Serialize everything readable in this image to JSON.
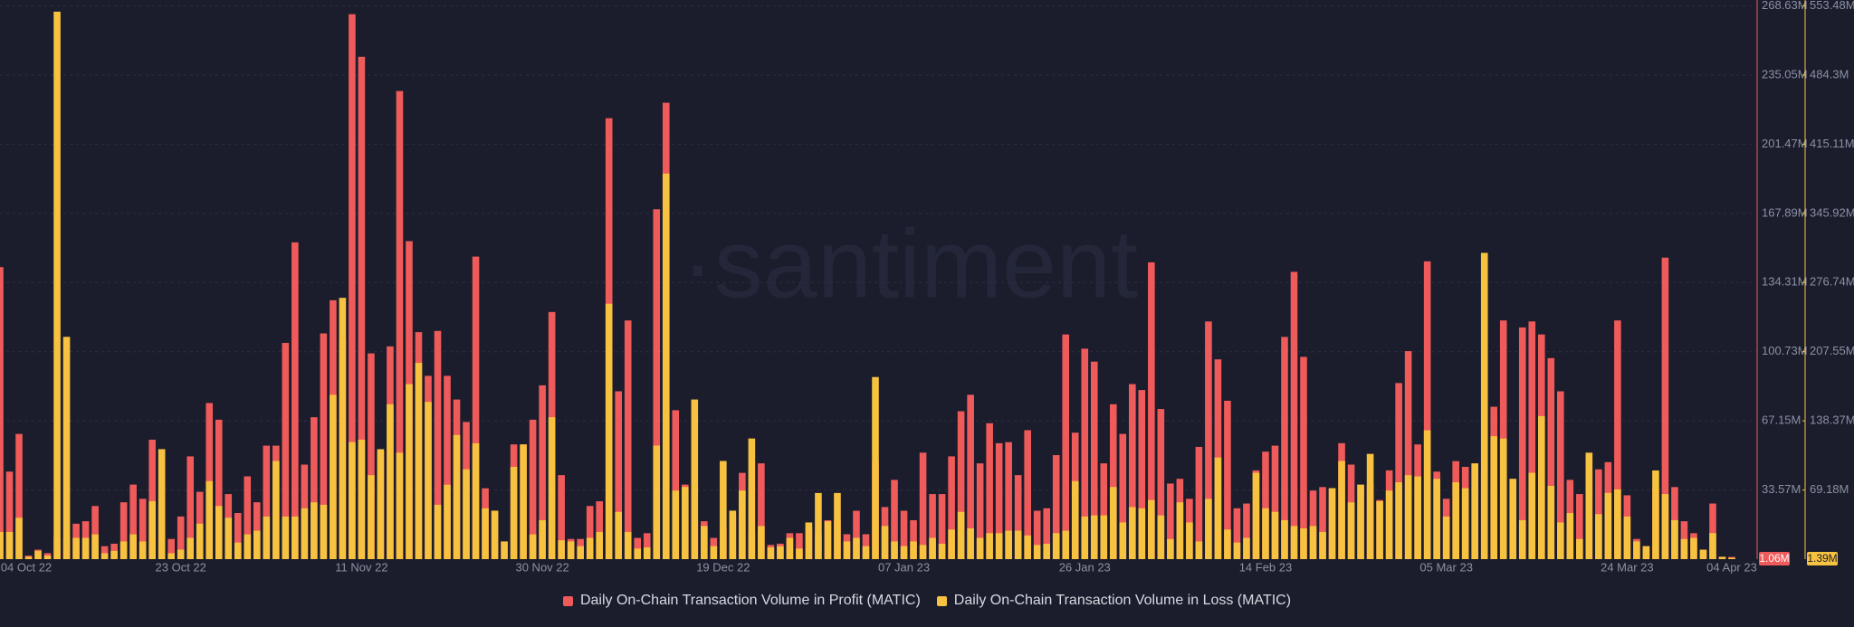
{
  "chart_data": {
    "type": "bar",
    "watermark": "·santiment",
    "categories": [
      "04 Oct 22",
      null,
      null,
      null,
      null,
      null,
      null,
      null,
      null,
      null,
      null,
      null,
      null,
      null,
      null,
      null,
      null,
      null,
      null,
      "23 Oct 22",
      null,
      null,
      null,
      null,
      null,
      null,
      null,
      null,
      null,
      null,
      null,
      null,
      null,
      null,
      null,
      null,
      null,
      null,
      "11 Nov 22",
      null,
      null,
      null,
      null,
      null,
      null,
      null,
      null,
      null,
      null,
      null,
      null,
      null,
      null,
      null,
      null,
      null,
      null,
      "30 Nov 22",
      null,
      null,
      null,
      null,
      null,
      null,
      null,
      null,
      null,
      null,
      null,
      null,
      null,
      null,
      null,
      null,
      null,
      null,
      "19 Dec 22",
      null,
      null,
      null,
      null,
      null,
      null,
      null,
      null,
      null,
      null,
      null,
      null,
      null,
      null,
      null,
      null,
      null,
      null,
      "07 Jan 23",
      null,
      null,
      null,
      null,
      null,
      null,
      null,
      null,
      null,
      null,
      null,
      null,
      null,
      null,
      null,
      null,
      null,
      null,
      "26 Jan 23",
      null,
      null,
      null,
      null,
      null,
      null,
      null,
      null,
      null,
      null,
      null,
      null,
      null,
      null,
      null,
      null,
      null,
      null,
      "14 Feb 23",
      null,
      null,
      null,
      null,
      null,
      null,
      null,
      null,
      null,
      null,
      null,
      null,
      null,
      null,
      null,
      null,
      null,
      null,
      "05 Mar 23",
      null,
      null,
      null,
      null,
      null,
      null,
      null,
      null,
      null,
      null,
      null,
      null,
      null,
      null,
      null,
      null,
      null,
      null,
      "24 Mar 23",
      null,
      null,
      null,
      null,
      null,
      null,
      null,
      null,
      null,
      null,
      "04 Apr 23"
    ],
    "series": [
      {
        "name": "Daily On-Chain Transaction Volume in Profit (MATIC)",
        "color": "#ef5a5a",
        "badge": "1.06M",
        "values": [
          141.8,
          42.5,
          60.8,
          1.7,
          4.6,
          2.9,
          10.3,
          10.3,
          17.2,
          18.4,
          25.8,
          6.3,
          7.5,
          27.6,
          36.2,
          29.3,
          58.0,
          53.4,
          9.8,
          20.7,
          49.9,
          32.7,
          75.8,
          67.7,
          31.6,
          22.4,
          40.2,
          27.6,
          55.1,
          55.1,
          105.0,
          153.8,
          45.9,
          68.9,
          109.6,
          125.7,
          106.8,
          264.6,
          243.9,
          99.9,
          52.2,
          103.3,
          227.3,
          154.4,
          110.2,
          89.0,
          110.8,
          89.0,
          77.5,
          66.6,
          146.9,
          34.4,
          23.5,
          8.6,
          55.7,
          55.7,
          67.7,
          84.4,
          120.0,
          40.8,
          9.8,
          9.8,
          25.8,
          28.1,
          214.1,
          81.5,
          115.9,
          10.3,
          12.6,
          169.9,
          221.6,
          72.3,
          36.2,
          18.9,
          18.4,
          10.3,
          15.5,
          21.8,
          41.9,
          13.2,
          46.5,
          6.9,
          7.5,
          12.6,
          12.6,
          15.5,
          12.1,
          18.9,
          18.9,
          12.1,
          23.5,
          12.1,
          47.6,
          25.3,
          38.5,
          23.5,
          18.9,
          51.7,
          31.6,
          31.6,
          49.9,
          71.8,
          79.8,
          46.5,
          66.0,
          56.3,
          56.8,
          40.8,
          62.6,
          23.5,
          24.7,
          50.5,
          109.1,
          61.4,
          102.2,
          95.9,
          46.5,
          75.2,
          60.8,
          85.0,
          82.1,
          144.1,
          72.9,
          36.7,
          39.0,
          29.3,
          54.5,
          115.4,
          97.0,
          76.9,
          24.7,
          27.0,
          43.1,
          52.2,
          55.1,
          107.9,
          139.5,
          98.2,
          33.3,
          35.0,
          34.4,
          56.3,
          45.9,
          36.2,
          36.2,
          28.7,
          43.1,
          85.5,
          101.0,
          55.7,
          144.6,
          42.5,
          29.3,
          47.6,
          44.8,
          46.5,
          41.9,
          74.0,
          115.9,
          37.9,
          112.5,
          115.4,
          109.1,
          97.6,
          81.5,
          38.5,
          31.6,
          43.1,
          43.6,
          47.1,
          115.9,
          31.0,
          9.8,
          6.3,
          35.0,
          146.4,
          35.0,
          18.4,
          12.6,
          4.6,
          27.0,
          1.1,
          1.06
        ]
      },
      {
        "name": "Daily On-Chain Transaction Volume in Loss (MATIC)",
        "color": "#f7c23f",
        "axis": "y2",
        "badge": "1.39M",
        "values": [
          27.2,
          27.2,
          41.4,
          2.4,
          8.3,
          3.5,
          547.7,
          222.4,
          21.3,
          21.3,
          24.8,
          5.9,
          8.3,
          17.7,
          24.8,
          17.7,
          58.0,
          110.0,
          5.9,
          9.5,
          21.3,
          35.5,
          78.1,
          53.2,
          41.4,
          16.6,
          24.8,
          28.4,
          42.6,
          98.2,
          42.6,
          42.6,
          50.9,
          56.8,
          54.4,
          164.4,
          261.4,
          117.1,
          119.5,
          84.0,
          110.0,
          155.0,
          106.5,
          175.1,
          196.4,
          157.3,
          54.4,
          74.5,
          124.2,
          89.9,
          115.9,
          50.9,
          48.5,
          17.7,
          92.3,
          114.8,
          24.8,
          39.0,
          142.0,
          18.9,
          17.7,
          13.0,
          21.3,
          27.2,
          255.5,
          47.3,
          27.2,
          10.6,
          11.8,
          113.6,
          385.7,
          68.6,
          72.2,
          159.7,
          33.1,
          13.0,
          98.2,
          48.5,
          68.6,
          120.7,
          33.1,
          11.8,
          13.0,
          21.3,
          10.6,
          36.7,
          66.2,
          37.9,
          66.2,
          17.7,
          21.3,
          13.0,
          182.2,
          33.1,
          17.7,
          13.0,
          17.7,
          14.2,
          21.3,
          15.4,
          29.6,
          47.3,
          30.8,
          21.3,
          26.0,
          26.0,
          28.4,
          28.4,
          23.7,
          14.2,
          15.4,
          26.0,
          28.4,
          78.1,
          42.6,
          43.8,
          43.8,
          72.2,
          36.7,
          52.1,
          50.9,
          59.2,
          43.8,
          20.1,
          56.8,
          36.7,
          17.7,
          60.3,
          101.7,
          29.6,
          16.6,
          21.3,
          86.4,
          50.9,
          47.3,
          39.0,
          33.1,
          30.8,
          33.1,
          27.2,
          71.0,
          98.2,
          56.8,
          74.5,
          105.3,
          58.0,
          68.6,
          76.9,
          84.0,
          82.8,
          128.9,
          80.4,
          42.6,
          76.9,
          71.0,
          95.8,
          306.4,
          123.0,
          120.7,
          80.4,
          39.0,
          86.4,
          143.1,
          73.3,
          36.7,
          46.1,
          20.1,
          106.5,
          45.0,
          66.2,
          69.8,
          42.6,
          17.7,
          13.0,
          88.7,
          65.1,
          39.0,
          20.1,
          21.3,
          9.5,
          26.0,
          2.4,
          1.39
        ]
      }
    ],
    "ylim": [
      0,
      268.63
    ],
    "yticks": [
      {
        "value": 33.57,
        "label": "33.57M"
      },
      {
        "value": 67.15,
        "label": "67.15M"
      },
      {
        "value": 100.73,
        "label": "100.73M"
      },
      {
        "value": 134.31,
        "label": "134.31M"
      },
      {
        "value": 167.89,
        "label": "167.89M"
      },
      {
        "value": 201.47,
        "label": "201.47M"
      },
      {
        "value": 235.05,
        "label": "235.05M"
      },
      {
        "value": 268.63,
        "label": "268.63M"
      }
    ],
    "y2lim": [
      0,
      553.48
    ],
    "y2ticks": [
      {
        "value": 69.18,
        "label": "69.18M"
      },
      {
        "value": 138.37,
        "label": "138.37M"
      },
      {
        "value": 207.55,
        "label": "207.55M"
      },
      {
        "value": 276.74,
        "label": "276.74M"
      },
      {
        "value": 345.92,
        "label": "345.92M"
      },
      {
        "value": 415.11,
        "label": "415.11M"
      },
      {
        "value": 484.3,
        "label": "484.3M"
      },
      {
        "value": 553.48,
        "label": "553.48M"
      }
    ],
    "grid": true,
    "legend": "bottom"
  }
}
